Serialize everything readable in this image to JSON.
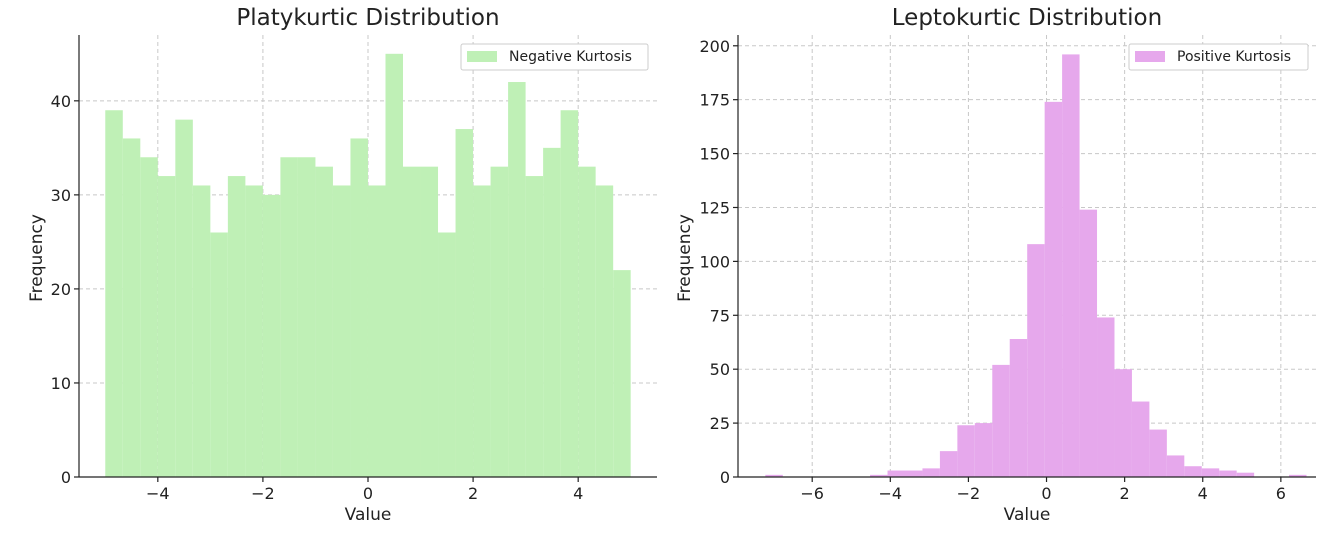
{
  "chart_data": [
    {
      "type": "bar",
      "title": "Platykurtic Distribution",
      "xlabel": "Value",
      "ylabel": "Frequency",
      "xlim": [
        -5.5,
        5.5
      ],
      "ylim": [
        0,
        47
      ],
      "xticks": [
        -4,
        -2,
        0,
        2,
        4
      ],
      "xtick_labels": [
        "−4",
        "−2",
        "0",
        "2",
        "4"
      ],
      "yticks": [
        0,
        10,
        20,
        30,
        40
      ],
      "yticks_labels": [
        "0",
        "10",
        "20",
        "30",
        "40"
      ],
      "grid": true,
      "legend_position": "top-right",
      "color": "#bff0b6",
      "bin_start": -5,
      "bin_width": 0.3333,
      "series": [
        {
          "name": "Negative Kurtosis",
          "values": [
            39,
            36,
            34,
            32,
            38,
            31,
            26,
            32,
            31,
            30,
            34,
            34,
            33,
            31,
            36,
            31,
            45,
            33,
            33,
            26,
            37,
            31,
            33,
            42,
            32,
            35,
            39,
            33,
            31,
            22
          ]
        }
      ]
    },
    {
      "type": "bar",
      "title": "Leptokurtic Distribution",
      "xlabel": "Value",
      "ylabel": "Frequency",
      "xlim": [
        -7.9,
        6.9
      ],
      "ylim": [
        0,
        205
      ],
      "xticks": [
        -6,
        -4,
        -2,
        0,
        2,
        4,
        6
      ],
      "xtick_labels": [
        "−6",
        "−4",
        "−2",
        "0",
        "2",
        "4",
        "6"
      ],
      "yticks": [
        0,
        25,
        50,
        75,
        100,
        125,
        150,
        175,
        200
      ],
      "yticks_labels": [
        "0",
        "25",
        "50",
        "75",
        "100",
        "125",
        "150",
        "175",
        "200"
      ],
      "grid": true,
      "legend_position": "top-right",
      "color": "#e6a8ec",
      "bin_start": -7.2,
      "bin_width": 0.447,
      "series": [
        {
          "name": "Positive Kurtosis",
          "values": [
            1,
            0,
            0,
            0,
            0,
            0,
            1,
            3,
            3,
            4,
            12,
            24,
            25,
            52,
            64,
            108,
            174,
            196,
            124,
            74,
            50,
            35,
            22,
            10,
            5,
            4,
            3,
            2,
            0,
            0,
            1
          ]
        }
      ]
    }
  ]
}
